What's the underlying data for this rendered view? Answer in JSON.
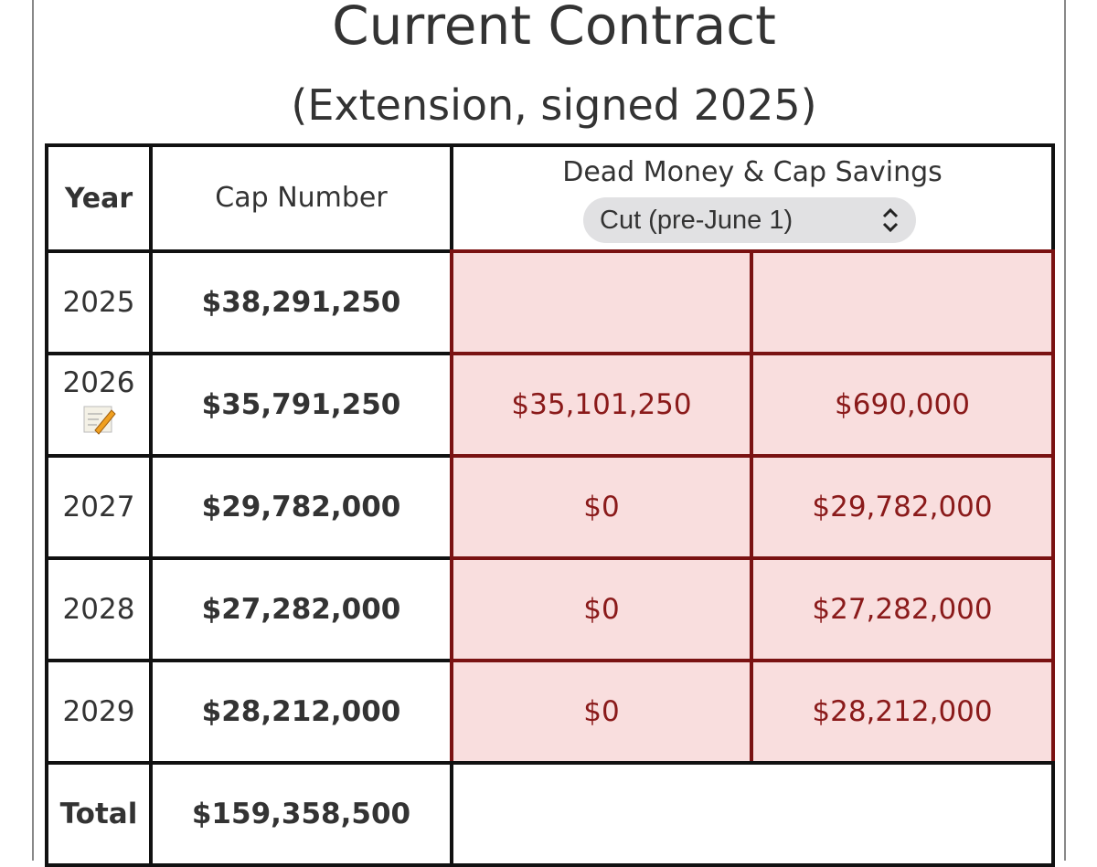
{
  "header": {
    "title": "Current Contract",
    "subtitle": "(Extension, signed 2025)"
  },
  "table": {
    "columns": [
      "Year",
      "Cap Number",
      "Dead Money & Cap Savings"
    ],
    "dropdown": "Cut (pre-June 1)",
    "rows": [
      [
        "2025",
        "$38,291,250",
        null,
        null
      ],
      [
        "2026",
        "$35,791,250",
        "$35,101,250",
        "$690,000"
      ],
      [
        "2027",
        "$29,782,000",
        "$0",
        "$29,782,000"
      ],
      [
        "2028",
        "$27,282,000",
        "$0",
        "$27,282,000"
      ],
      [
        "2029",
        "$28,212,000",
        "$0",
        "$28,212,000"
      ]
    ],
    "total": [
      "Total",
      "$159,358,500"
    ]
  }
}
